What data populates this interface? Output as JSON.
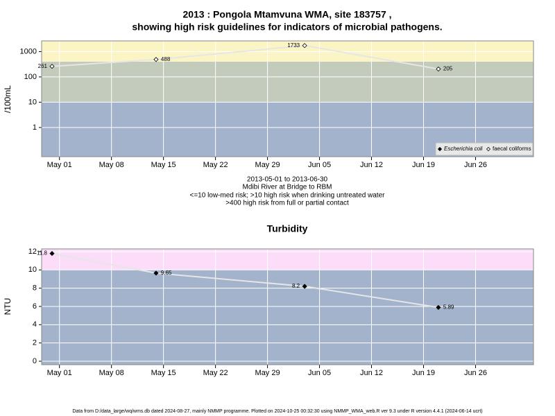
{
  "chart_data": [
    {
      "type": "line",
      "title": "2013 : Pongola Mtamvuna WMA, site 183757 ,",
      "subtitle": "showing high risk guidelines for indicators of microbial pathogens.",
      "ylabel": "/100mL",
      "caption": [
        "2013-05-01 to 2013-06-30",
        "Mdibi River at Bridge to RBM",
        "<=10 low-med risk; >10 high risk when drinking untreated water",
        ">400 high risk from full or partial contact"
      ],
      "log_scale": true,
      "grid": true,
      "legend": "lower right",
      "x": [
        120,
        134,
        154,
        172
      ],
      "series": [
        {
          "name": "Escherichia coli",
          "color": "#000000",
          "marker": "filled-diamond",
          "values": [
            null,
            null,
            null,
            null
          ]
        },
        {
          "name": "faecal coliforms",
          "color": "#000000",
          "marker": "open-diamond",
          "values": [
            261,
            488,
            1733,
            205
          ]
        }
      ],
      "bands": [
        {
          "from": 0.07,
          "to": 10,
          "color": "#a3b3cc"
        },
        {
          "from": 10,
          "to": 400,
          "color": "#c3cbbd"
        },
        {
          "from": 400,
          "to": 2650,
          "color": "#fbf5c5"
        }
      ],
      "xlim": [
        118.6,
        184.8
      ],
      "xticks": [
        {
          "value": 121,
          "label": "May 01"
        },
        {
          "value": 128,
          "label": "May 08"
        },
        {
          "value": 135,
          "label": "May 15"
        },
        {
          "value": 142,
          "label": "May 22"
        },
        {
          "value": 149,
          "label": "May 29"
        },
        {
          "value": 156,
          "label": "Jun 05"
        },
        {
          "value": 163,
          "label": "Jun 12"
        },
        {
          "value": 170,
          "label": "Jun 19"
        },
        {
          "value": 177,
          "label": "Jun 26"
        }
      ],
      "ylim": [
        0.07,
        2650
      ],
      "yticks": [
        1,
        10,
        100,
        1000
      ]
    },
    {
      "type": "line",
      "title": "Turbidity",
      "ylabel": "NTU",
      "grid": true,
      "x": [
        120,
        134,
        154,
        172
      ],
      "series": [
        {
          "name": "Turbidity",
          "color": "#000000",
          "marker": "filled-diamond",
          "values": [
            11.8,
            9.65,
            8.2,
            5.89
          ]
        }
      ],
      "bands": [
        {
          "from": -0.38,
          "to": 10,
          "color": "#a3b3cc"
        },
        {
          "from": 10,
          "to": 12.3,
          "color": "#fbdcf9"
        }
      ],
      "xlim": [
        118.6,
        184.8
      ],
      "xticks": [
        {
          "value": 121,
          "label": "May 01"
        },
        {
          "value": 128,
          "label": "May 08"
        },
        {
          "value": 135,
          "label": "May 15"
        },
        {
          "value": 142,
          "label": "May 22"
        },
        {
          "value": 149,
          "label": "May 29"
        },
        {
          "value": 156,
          "label": "Jun 05"
        },
        {
          "value": 163,
          "label": "Jun 12"
        },
        {
          "value": 170,
          "label": "Jun 19"
        },
        {
          "value": 177,
          "label": "Jun 26"
        }
      ],
      "ylim": [
        -0.38,
        12.3
      ],
      "yticks": [
        0,
        2,
        4,
        6,
        8,
        10,
        12
      ]
    }
  ],
  "footer": "Data from D:/data_large/wq/wms.db dated 2024-08-27, mainly NMMP programme. Plotted on 2024-10-25 00:32:30 using NMMP_WMA_web.R ver 9.3 under R version 4.4.1 (2024-06-14 ucrt)"
}
